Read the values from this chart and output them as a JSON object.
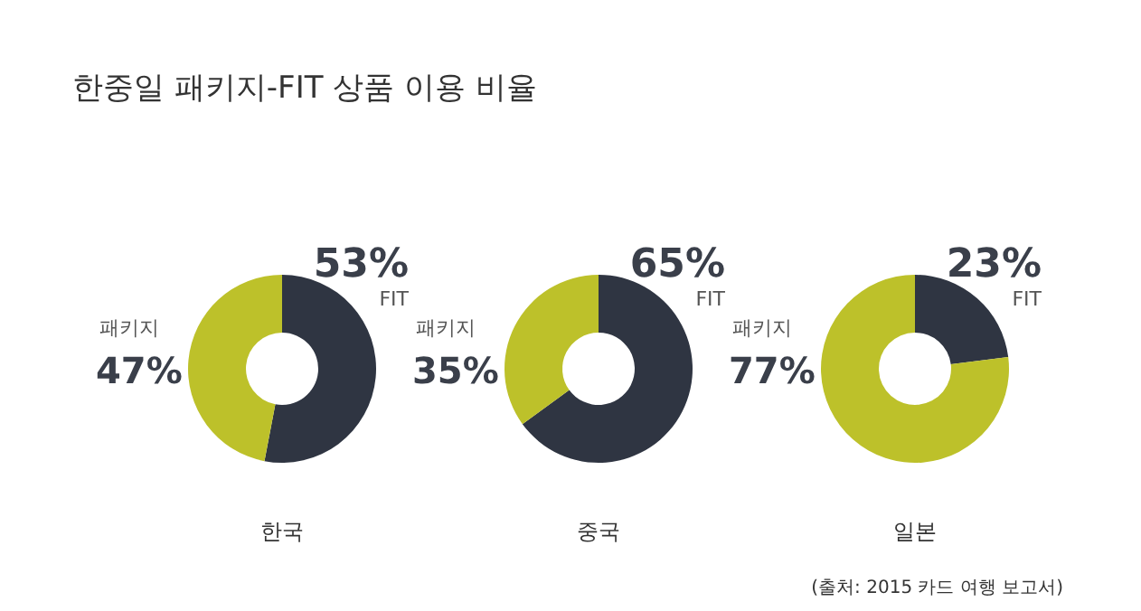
{
  "chart_data": [
    {
      "type": "donut",
      "title": "한중일 패키지-FIT 상품 이용 비율",
      "xlabel": "한국",
      "categories": [
        "FIT",
        "패키지"
      ],
      "values": [
        53,
        47
      ],
      "value_labels": [
        "53%",
        "47%"
      ],
      "colors": [
        "#2f3542",
        "#bdc12a"
      ]
    },
    {
      "type": "donut",
      "xlabel": "중국",
      "categories": [
        "FIT",
        "패키지"
      ],
      "values": [
        65,
        35
      ],
      "value_labels": [
        "65%",
        "35%"
      ],
      "colors": [
        "#2f3542",
        "#bdc12a"
      ]
    },
    {
      "type": "donut",
      "xlabel": "일본",
      "categories": [
        "FIT",
        "패키지"
      ],
      "values": [
        23,
        77
      ],
      "value_labels": [
        "23%",
        "77%"
      ],
      "colors": [
        "#2f3542",
        "#bdc12a"
      ],
      "annotations": [
        "(출처: 2015 카드 여행 보고서)"
      ]
    }
  ]
}
